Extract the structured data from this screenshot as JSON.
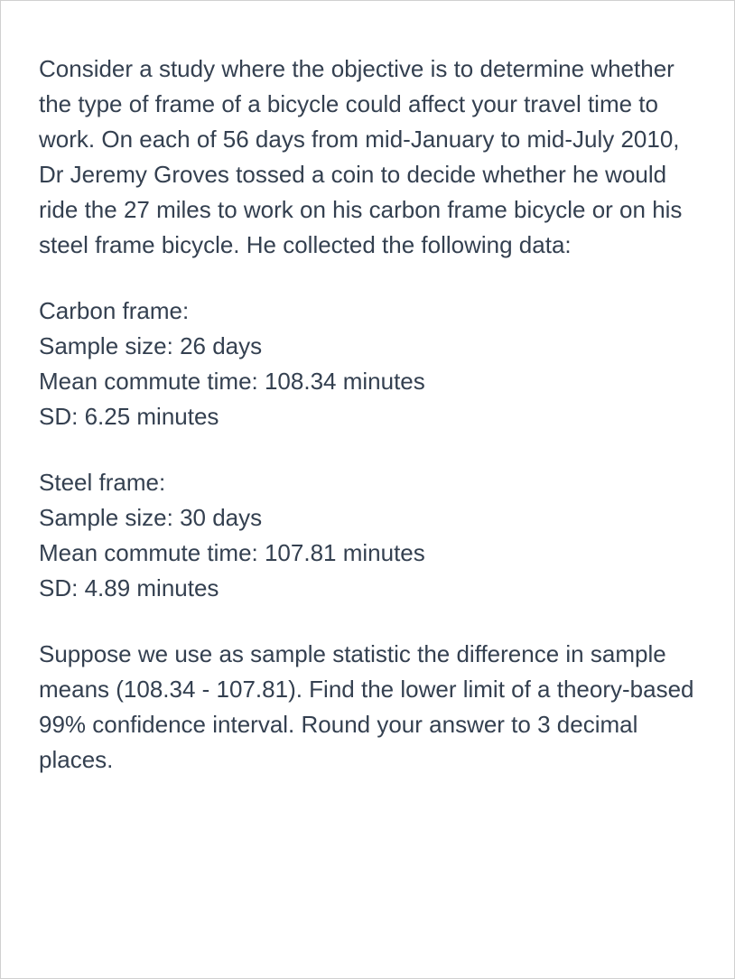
{
  "intro": "Consider a study where the objective is to determine whether the type of frame of a bicycle could affect your travel time to work. On each of 56 days from mid-January to mid-July 2010, Dr Jeremy Groves tossed a coin to decide whether he would ride the 27 miles to work on his carbon frame bicycle or on his steel frame bicycle. He collected the following data:",
  "carbon": {
    "title": "Carbon frame:",
    "sample_size": "Sample size: 26 days",
    "mean": "Mean commute time: 108.34 minutes",
    "sd": "SD: 6.25 minutes"
  },
  "steel": {
    "title": "Steel frame:",
    "sample_size": "Sample size: 30 days",
    "mean": "Mean commute time: 107.81 minutes",
    "sd": "SD: 4.89 minutes"
  },
  "question": "Suppose we use as sample statistic the difference in sample means (108.34 - 107.81). Find the lower limit of a theory-based 99% confidence interval. Round your answer to 3 decimal places."
}
